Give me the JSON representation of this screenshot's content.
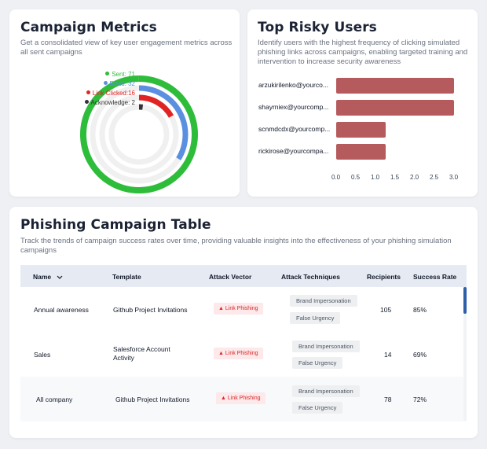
{
  "campaign_metrics": {
    "title": "Campaign Metrics",
    "subtitle": "Get a consolidated view of key user engagement metrics across all sent campaigns",
    "legend": [
      {
        "label": "Sent: 71",
        "color": "#2ebd3b",
        "value": 71
      },
      {
        "label": "Read: 32",
        "color": "#5b8fe0",
        "value": 32
      },
      {
        "label": "Link Clicked:16",
        "color": "#e02424",
        "value": 16
      },
      {
        "label": "Acknowledge: 2",
        "color": "#333333",
        "value": 2
      }
    ]
  },
  "risky_users": {
    "title": "Top Risky Users",
    "subtitle": "Identify users with the highest frequency of clicking simulated phishing links across campaigns, enabling targeted training and intervention to increase security awareness",
    "bar_color": "#b55a5d",
    "chart_data": {
      "type": "bar",
      "orientation": "horizontal",
      "categories": [
        "arzukirilenko@yourco...",
        "shayrniex@yourcomp...",
        "scnmdcdx@yourcomp...",
        "rickirose@yourcompa..."
      ],
      "values": [
        3,
        3,
        1.25,
        1.25
      ],
      "xlim": [
        0,
        3
      ],
      "ticks": [
        "0.0",
        "0.5",
        "1.0",
        "1.5",
        "2.0",
        "2.5",
        "3.0"
      ]
    }
  },
  "campaign_table": {
    "title": "Phishing Campaign Table",
    "subtitle": "Track the trends of campaign success rates over time, providing valuable insights into the effectiveness of your phishing simulation campaigns",
    "columns": [
      "Name",
      "Template",
      "Attack Vector",
      "Attack Techniques",
      "Recipients",
      "Success Rate"
    ],
    "rows": [
      {
        "name": "Annual awareness",
        "template": "Github Project Invitations",
        "vector": "Link Phishing",
        "techniques": [
          "Brand Impersonation",
          "False Urgency"
        ],
        "recipients": "105",
        "rate": "85%"
      },
      {
        "name": "Sales",
        "template": "Salesforce Account\nActivity",
        "vector": "Link Phishing",
        "techniques": [
          "Brand Impersonation",
          "False Urgency"
        ],
        "recipients": "14",
        "rate": "69%"
      },
      {
        "name": "All company",
        "template": "Github Project Invitations",
        "vector": "Link Phishing",
        "techniques": [
          "Brand Impersonation",
          "False Urgency"
        ],
        "recipients": "78",
        "rate": "72%"
      }
    ]
  }
}
